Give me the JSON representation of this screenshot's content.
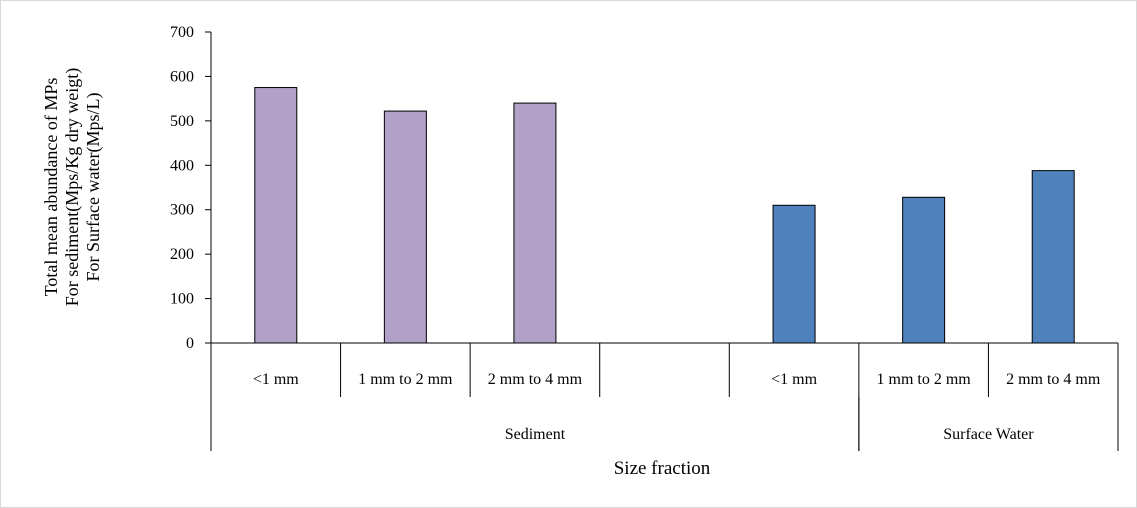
{
  "chart_data": {
    "type": "bar",
    "xlabel": "Size fraction",
    "ylabel_lines": [
      "Total mean abundance of MPs",
      "For sediment(Mps/Kg dry weigt)",
      "For Surface water(Mps/L)"
    ],
    "ylim": [
      0,
      700
    ],
    "yticks": [
      0,
      100,
      200,
      300,
      400,
      500,
      600,
      700
    ],
    "grid": false,
    "legend": "none",
    "categories": [
      "<1 mm",
      "1 mm to 2 mm",
      "2 mm to 4 mm",
      "",
      "<1 mm",
      "1 mm to 2 mm",
      "2 mm to 4 mm"
    ],
    "values": [
      575,
      522,
      540,
      null,
      310,
      328,
      388
    ],
    "groups": [
      {
        "label": "Sediment",
        "start": 0,
        "end": 5
      },
      {
        "label": "Surface Water",
        "start": 5,
        "end": 7
      }
    ],
    "bar_colors": [
      "#b1a0c7",
      "#b1a0c7",
      "#b1a0c7",
      null,
      "#4f81bd",
      "#4f81bd",
      "#4f81bd"
    ]
  }
}
